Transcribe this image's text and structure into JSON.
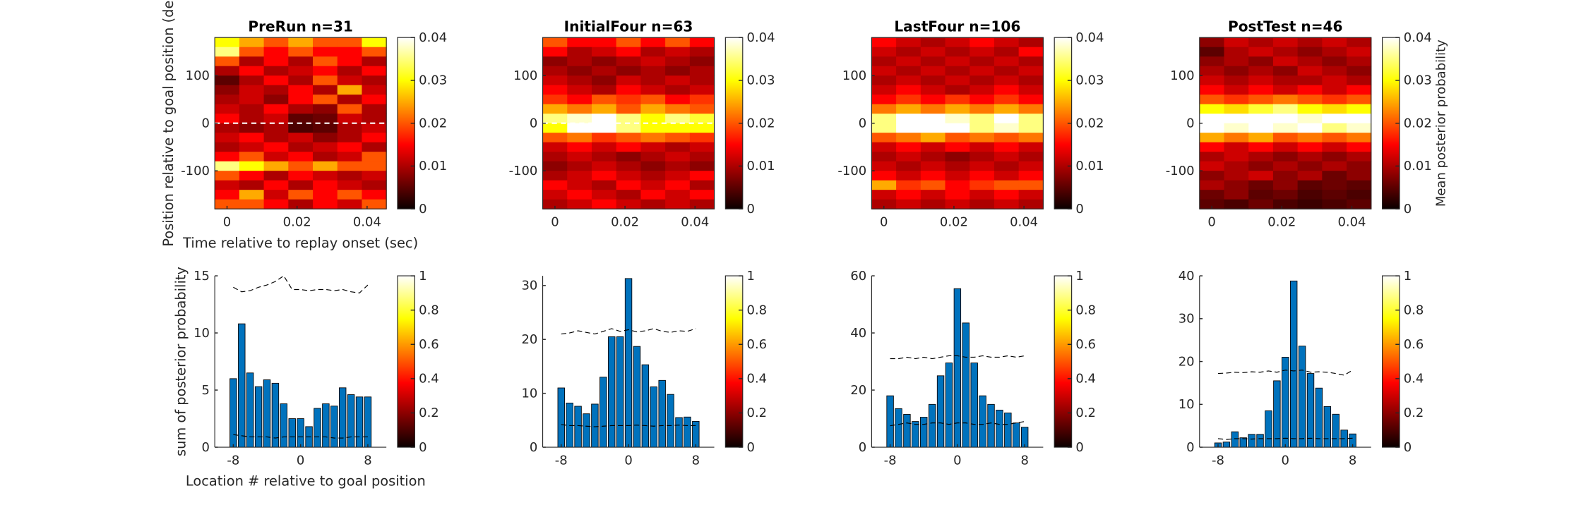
{
  "chart_data": [
    {
      "type": "heatmap",
      "title": "PreRun n=31",
      "ylabel": "Position relative to goal position (deg",
      "xlabel": "Time relative to replay onset (sec)",
      "x": [
        0,
        0.007,
        0.014,
        0.021,
        0.028,
        0.035,
        0.042
      ],
      "y": [
        170,
        150,
        130,
        110,
        90,
        70,
        50,
        30,
        10,
        -10,
        -30,
        -50,
        -70,
        -90,
        -110,
        -130,
        -150,
        -170
      ],
      "z": [
        [
          0.03,
          0.025,
          0.02,
          0.025,
          0.02,
          0.02,
          0.03
        ],
        [
          0.035,
          0.02,
          0.015,
          0.02,
          0.015,
          0.015,
          0.02
        ],
        [
          0.02,
          0.01,
          0.015,
          0.01,
          0.02,
          0.015,
          0.01
        ],
        [
          0.01,
          0.015,
          0.01,
          0.012,
          0.015,
          0.01,
          0.015
        ],
        [
          0.005,
          0.01,
          0.015,
          0.01,
          0.02,
          0.012,
          0.01
        ],
        [
          0.008,
          0.012,
          0.01,
          0.015,
          0.01,
          0.025,
          0.012
        ],
        [
          0.01,
          0.012,
          0.008,
          0.015,
          0.02,
          0.01,
          0.015
        ],
        [
          0.012,
          0.01,
          0.015,
          0.01,
          0.008,
          0.02,
          0.01
        ],
        [
          0.015,
          0.01,
          0.012,
          0.005,
          0.006,
          0.012,
          0.01
        ],
        [
          0.01,
          0.008,
          0.01,
          0.004,
          0.005,
          0.01,
          0.012
        ],
        [
          0.012,
          0.015,
          0.01,
          0.012,
          0.008,
          0.01,
          0.015
        ],
        [
          0.01,
          0.012,
          0.015,
          0.01,
          0.012,
          0.015,
          0.01
        ],
        [
          0.015,
          0.02,
          0.012,
          0.015,
          0.01,
          0.012,
          0.02
        ],
        [
          0.035,
          0.03,
          0.025,
          0.02,
          0.025,
          0.02,
          0.02
        ],
        [
          0.02,
          0.015,
          0.01,
          0.015,
          0.012,
          0.01,
          0.012
        ],
        [
          0.012,
          0.01,
          0.015,
          0.01,
          0.015,
          0.012,
          0.01
        ],
        [
          0.015,
          0.025,
          0.012,
          0.02,
          0.015,
          0.02,
          0.015
        ],
        [
          0.02,
          0.02,
          0.015,
          0.01,
          0.015,
          0.012,
          0.02
        ]
      ],
      "xlim": [
        -0.0035,
        0.0455
      ],
      "xticks": [
        0,
        0.02,
        0.04
      ],
      "ylim": [
        -180,
        180
      ],
      "yticks": [
        -100,
        0,
        100
      ],
      "hline": 0,
      "clim": [
        0,
        0.04
      ],
      "cticks": [
        0,
        0.01,
        0.02,
        0.03,
        0.04
      ]
    },
    {
      "type": "heatmap",
      "title": "InitialFour n=63",
      "x": [
        0,
        0.007,
        0.014,
        0.021,
        0.028,
        0.035,
        0.042
      ],
      "y": [
        170,
        150,
        130,
        110,
        90,
        70,
        50,
        30,
        10,
        -10,
        -30,
        -50,
        -70,
        -90,
        -110,
        -130,
        -150,
        -170
      ],
      "z": [
        [
          0.02,
          0.015,
          0.015,
          0.02,
          0.015,
          0.02,
          0.015
        ],
        [
          0.015,
          0.01,
          0.012,
          0.015,
          0.01,
          0.012,
          0.01
        ],
        [
          0.008,
          0.01,
          0.008,
          0.01,
          0.012,
          0.01,
          0.008
        ],
        [
          0.01,
          0.008,
          0.01,
          0.008,
          0.01,
          0.008,
          0.01
        ],
        [
          0.012,
          0.01,
          0.008,
          0.012,
          0.01,
          0.012,
          0.01
        ],
        [
          0.015,
          0.012,
          0.01,
          0.015,
          0.012,
          0.01,
          0.012
        ],
        [
          0.018,
          0.015,
          0.02,
          0.018,
          0.02,
          0.015,
          0.018
        ],
        [
          0.025,
          0.022,
          0.025,
          0.02,
          0.025,
          0.022,
          0.02
        ],
        [
          0.035,
          0.038,
          0.04,
          0.035,
          0.03,
          0.035,
          0.032
        ],
        [
          0.03,
          0.04,
          0.04,
          0.035,
          0.03,
          0.03,
          0.03
        ],
        [
          0.02,
          0.022,
          0.018,
          0.02,
          0.022,
          0.02,
          0.018
        ],
        [
          0.012,
          0.015,
          0.012,
          0.015,
          0.012,
          0.01,
          0.012
        ],
        [
          0.01,
          0.012,
          0.01,
          0.008,
          0.01,
          0.012,
          0.01
        ],
        [
          0.008,
          0.01,
          0.012,
          0.01,
          0.008,
          0.01,
          0.008
        ],
        [
          0.01,
          0.012,
          0.015,
          0.012,
          0.01,
          0.012,
          0.015
        ],
        [
          0.015,
          0.012,
          0.01,
          0.015,
          0.012,
          0.015,
          0.01
        ],
        [
          0.012,
          0.015,
          0.012,
          0.01,
          0.015,
          0.012,
          0.015
        ],
        [
          0.01,
          0.012,
          0.015,
          0.012,
          0.01,
          0.012,
          0.01
        ]
      ],
      "xlim": [
        -0.0035,
        0.0455
      ],
      "xticks": [
        0,
        0.02,
        0.04
      ],
      "ylim": [
        -180,
        180
      ],
      "yticks": [
        -100,
        0,
        100
      ],
      "hline": 0,
      "clim": [
        0,
        0.04
      ],
      "cticks": [
        0,
        0.01,
        0.02,
        0.03,
        0.04
      ]
    },
    {
      "type": "heatmap",
      "title": "LastFour n=106",
      "x": [
        0,
        0.007,
        0.014,
        0.021,
        0.028,
        0.035,
        0.042
      ],
      "y": [
        170,
        150,
        130,
        110,
        90,
        70,
        50,
        30,
        10,
        -10,
        -30,
        -50,
        -70,
        -90,
        -110,
        -130,
        -150,
        -170
      ],
      "z": [
        [
          0.015,
          0.012,
          0.01,
          0.012,
          0.015,
          0.012,
          0.01
        ],
        [
          0.012,
          0.01,
          0.012,
          0.01,
          0.012,
          0.01,
          0.015
        ],
        [
          0.01,
          0.012,
          0.01,
          0.012,
          0.01,
          0.012,
          0.01
        ],
        [
          0.012,
          0.01,
          0.012,
          0.01,
          0.012,
          0.01,
          0.012
        ],
        [
          0.01,
          0.012,
          0.01,
          0.012,
          0.01,
          0.012,
          0.01
        ],
        [
          0.012,
          0.015,
          0.012,
          0.01,
          0.012,
          0.015,
          0.012
        ],
        [
          0.015,
          0.018,
          0.015,
          0.018,
          0.015,
          0.018,
          0.015
        ],
        [
          0.022,
          0.025,
          0.022,
          0.025,
          0.022,
          0.025,
          0.022
        ],
        [
          0.035,
          0.04,
          0.04,
          0.038,
          0.035,
          0.04,
          0.035
        ],
        [
          0.035,
          0.04,
          0.04,
          0.04,
          0.035,
          0.038,
          0.035
        ],
        [
          0.02,
          0.022,
          0.025,
          0.02,
          0.022,
          0.02,
          0.022
        ],
        [
          0.012,
          0.015,
          0.012,
          0.015,
          0.012,
          0.015,
          0.012
        ],
        [
          0.01,
          0.012,
          0.01,
          0.008,
          0.01,
          0.012,
          0.01
        ],
        [
          0.012,
          0.01,
          0.012,
          0.01,
          0.012,
          0.01,
          0.012
        ],
        [
          0.015,
          0.012,
          0.015,
          0.012,
          0.015,
          0.012,
          0.015
        ],
        [
          0.025,
          0.018,
          0.02,
          0.015,
          0.018,
          0.02,
          0.02
        ],
        [
          0.012,
          0.015,
          0.012,
          0.015,
          0.012,
          0.015,
          0.012
        ],
        [
          0.01,
          0.012,
          0.01,
          0.012,
          0.01,
          0.012,
          0.01
        ]
      ],
      "xlim": [
        -0.0035,
        0.0455
      ],
      "xticks": [
        0,
        0.02,
        0.04
      ],
      "ylim": [
        -180,
        180
      ],
      "yticks": [
        -100,
        0,
        100
      ],
      "clim": [
        0,
        0.04
      ],
      "cticks": [
        0,
        0.01,
        0.02,
        0.03,
        0.04
      ]
    },
    {
      "type": "heatmap",
      "title": "PostTest n=46",
      "clabel": "Mean posterior probability",
      "x": [
        0,
        0.007,
        0.014,
        0.021,
        0.028,
        0.035,
        0.042
      ],
      "y": [
        170,
        150,
        130,
        110,
        90,
        70,
        50,
        30,
        10,
        -10,
        -30,
        -50,
        -70,
        -90,
        -110,
        -130,
        -150,
        -170
      ],
      "z": [
        [
          0.008,
          0.012,
          0.01,
          0.012,
          0.01,
          0.012,
          0.01
        ],
        [
          0.005,
          0.01,
          0.012,
          0.01,
          0.008,
          0.01,
          0.012
        ],
        [
          0.008,
          0.01,
          0.008,
          0.012,
          0.01,
          0.008,
          0.01
        ],
        [
          0.01,
          0.008,
          0.01,
          0.008,
          0.012,
          0.01,
          0.008
        ],
        [
          0.012,
          0.01,
          0.012,
          0.01,
          0.01,
          0.012,
          0.01
        ],
        [
          0.015,
          0.012,
          0.015,
          0.012,
          0.015,
          0.012,
          0.015
        ],
        [
          0.02,
          0.018,
          0.02,
          0.022,
          0.02,
          0.018,
          0.02
        ],
        [
          0.03,
          0.028,
          0.032,
          0.035,
          0.03,
          0.028,
          0.03
        ],
        [
          0.04,
          0.04,
          0.04,
          0.04,
          0.038,
          0.04,
          0.04
        ],
        [
          0.04,
          0.038,
          0.04,
          0.038,
          0.04,
          0.035,
          0.038
        ],
        [
          0.025,
          0.022,
          0.025,
          0.02,
          0.022,
          0.02,
          0.022
        ],
        [
          0.015,
          0.012,
          0.015,
          0.012,
          0.015,
          0.012,
          0.015
        ],
        [
          0.01,
          0.012,
          0.01,
          0.008,
          0.01,
          0.008,
          0.01
        ],
        [
          0.012,
          0.01,
          0.008,
          0.01,
          0.008,
          0.01,
          0.008
        ],
        [
          0.008,
          0.01,
          0.012,
          0.008,
          0.01,
          0.006,
          0.008
        ],
        [
          0.01,
          0.008,
          0.006,
          0.008,
          0.005,
          0.006,
          0.005
        ],
        [
          0.006,
          0.008,
          0.005,
          0.006,
          0.004,
          0.005,
          0.004
        ],
        [
          0.005,
          0.004,
          0.006,
          0.004,
          0.003,
          0.004,
          0.005
        ]
      ],
      "xlim": [
        -0.0035,
        0.0455
      ],
      "xticks": [
        0,
        0.02,
        0.04
      ],
      "ylim": [
        -180,
        180
      ],
      "yticks": [
        -100,
        0,
        100
      ],
      "clim": [
        0,
        0.04
      ],
      "cticks": [
        0,
        0.01,
        0.02,
        0.03,
        0.04
      ]
    },
    {
      "type": "bar",
      "ylabel": "sum of posterior probability",
      "xlabel": "Location # relative to goal position",
      "color": "#0072bd",
      "categories": [
        -8,
        -7,
        -6,
        -5,
        -4,
        -3,
        -2,
        -1,
        0,
        1,
        2,
        3,
        4,
        5,
        6,
        7,
        8
      ],
      "values": [
        6,
        10.8,
        6.5,
        5.3,
        5.9,
        5.6,
        3.8,
        2.5,
        2.5,
        1.8,
        3.4,
        3.8,
        3.6,
        5.2,
        4.6,
        4.4,
        4.4
      ],
      "dashed": [
        [
          14,
          13.6,
          13.7,
          14,
          14.2,
          14.5,
          15,
          13.8,
          13.8,
          13.7,
          13.8,
          13.8,
          13.7,
          13.8,
          13.6,
          13.5,
          14.2
        ],
        [
          1.1,
          1,
          0.9,
          0.9,
          0.9,
          0.8,
          0.9,
          0.9,
          0.9,
          0.9,
          0.9,
          0.9,
          0.8,
          0.8,
          0.9,
          0.9,
          0.9
        ]
      ],
      "xlim": [
        -10.2,
        10.2
      ],
      "xticks": [
        -8,
        0,
        8
      ],
      "ylim": [
        0,
        15
      ],
      "yticks": [
        0,
        5,
        10,
        15
      ],
      "clim": [
        0,
        1
      ],
      "cticks": [
        0,
        0.2,
        0.4,
        0.6,
        0.8,
        1
      ]
    },
    {
      "type": "bar",
      "color": "#0072bd",
      "categories": [
        -8,
        -7,
        -6,
        -5,
        -4,
        -3,
        -2,
        -1,
        0,
        1,
        2,
        3,
        4,
        5,
        6,
        7,
        8
      ],
      "values": [
        11,
        8.2,
        7.6,
        6.2,
        8,
        13,
        20.5,
        20.5,
        31.3,
        18.7,
        15.3,
        11.2,
        12.4,
        9.8,
        5.5,
        5.6,
        4.8
      ],
      "dashed": [
        [
          21,
          21.2,
          21.6,
          21.3,
          21,
          21.5,
          22,
          21.5,
          21.8,
          21.4,
          21.6,
          22,
          21.5,
          21.3,
          21.6,
          21.5,
          22
        ],
        [
          4.2,
          4,
          4,
          3.9,
          3.8,
          3.9,
          4,
          4,
          4,
          4.1,
          4,
          3.9,
          4,
          4,
          4.1,
          4,
          4
        ]
      ],
      "xlim": [
        -10.2,
        10.2
      ],
      "xticks": [
        -8,
        0,
        8
      ],
      "ylim": [
        0,
        31.8
      ],
      "yticks": [
        0,
        10,
        20,
        30
      ],
      "clim": [
        0,
        1
      ],
      "cticks": [
        0,
        0.2,
        0.4,
        0.6,
        0.8,
        1
      ]
    },
    {
      "type": "bar",
      "color": "#0072bd",
      "categories": [
        -8,
        -7,
        -6,
        -5,
        -4,
        -3,
        -2,
        -1,
        0,
        1,
        2,
        3,
        4,
        5,
        6,
        7,
        8
      ],
      "values": [
        18,
        13.5,
        11.5,
        9,
        10.5,
        15,
        25,
        29.5,
        55.5,
        43.5,
        29.5,
        18,
        15,
        13,
        12,
        8.5,
        7
      ],
      "dashed": [
        [
          31,
          31,
          31.5,
          31,
          31.5,
          31,
          31.5,
          32,
          32,
          31.5,
          31.5,
          32,
          31.5,
          31.5,
          32,
          31.5,
          32
        ],
        [
          7.5,
          8,
          8.5,
          8,
          8,
          8.5,
          8.5,
          8,
          8.5,
          8.5,
          8,
          8,
          8.5,
          8,
          8,
          8.5,
          9
        ]
      ],
      "xlim": [
        -10.2,
        10.2
      ],
      "xticks": [
        -8,
        0,
        8
      ],
      "ylim": [
        0,
        60
      ],
      "yticks": [
        0,
        20,
        40,
        60
      ],
      "clim": [
        0,
        1
      ],
      "cticks": [
        0,
        0.2,
        0.4,
        0.6,
        0.8,
        1
      ]
    },
    {
      "type": "bar",
      "color": "#0072bd",
      "categories": [
        -8,
        -7,
        -6,
        -5,
        -4,
        -3,
        -2,
        -1,
        0,
        1,
        2,
        3,
        4,
        5,
        6,
        7,
        8
      ],
      "values": [
        1,
        1.2,
        3.6,
        2.2,
        3,
        3,
        8.5,
        15.5,
        21,
        38.8,
        23.6,
        17.2,
        13.8,
        9.5,
        7.7,
        4,
        3.1
      ],
      "dashed": [
        [
          17.2,
          17.3,
          17.5,
          17.4,
          17.6,
          17.5,
          17.8,
          17.5,
          18,
          17.8,
          18,
          17.5,
          17.6,
          17.5,
          17.2,
          16.8,
          18
        ],
        [
          2,
          1.8,
          2,
          2,
          1.9,
          2,
          2,
          2,
          2.1,
          2,
          2,
          2.1,
          2,
          2,
          2,
          2,
          2.1
        ]
      ],
      "xlim": [
        -10.2,
        10.2
      ],
      "xticks": [
        -8,
        0,
        8
      ],
      "ylim": [
        0,
        40
      ],
      "yticks": [
        0,
        10,
        20,
        30,
        40
      ],
      "clim": [
        0,
        1
      ],
      "cticks": [
        0,
        0.2,
        0.4,
        0.6,
        0.8,
        1
      ]
    }
  ]
}
